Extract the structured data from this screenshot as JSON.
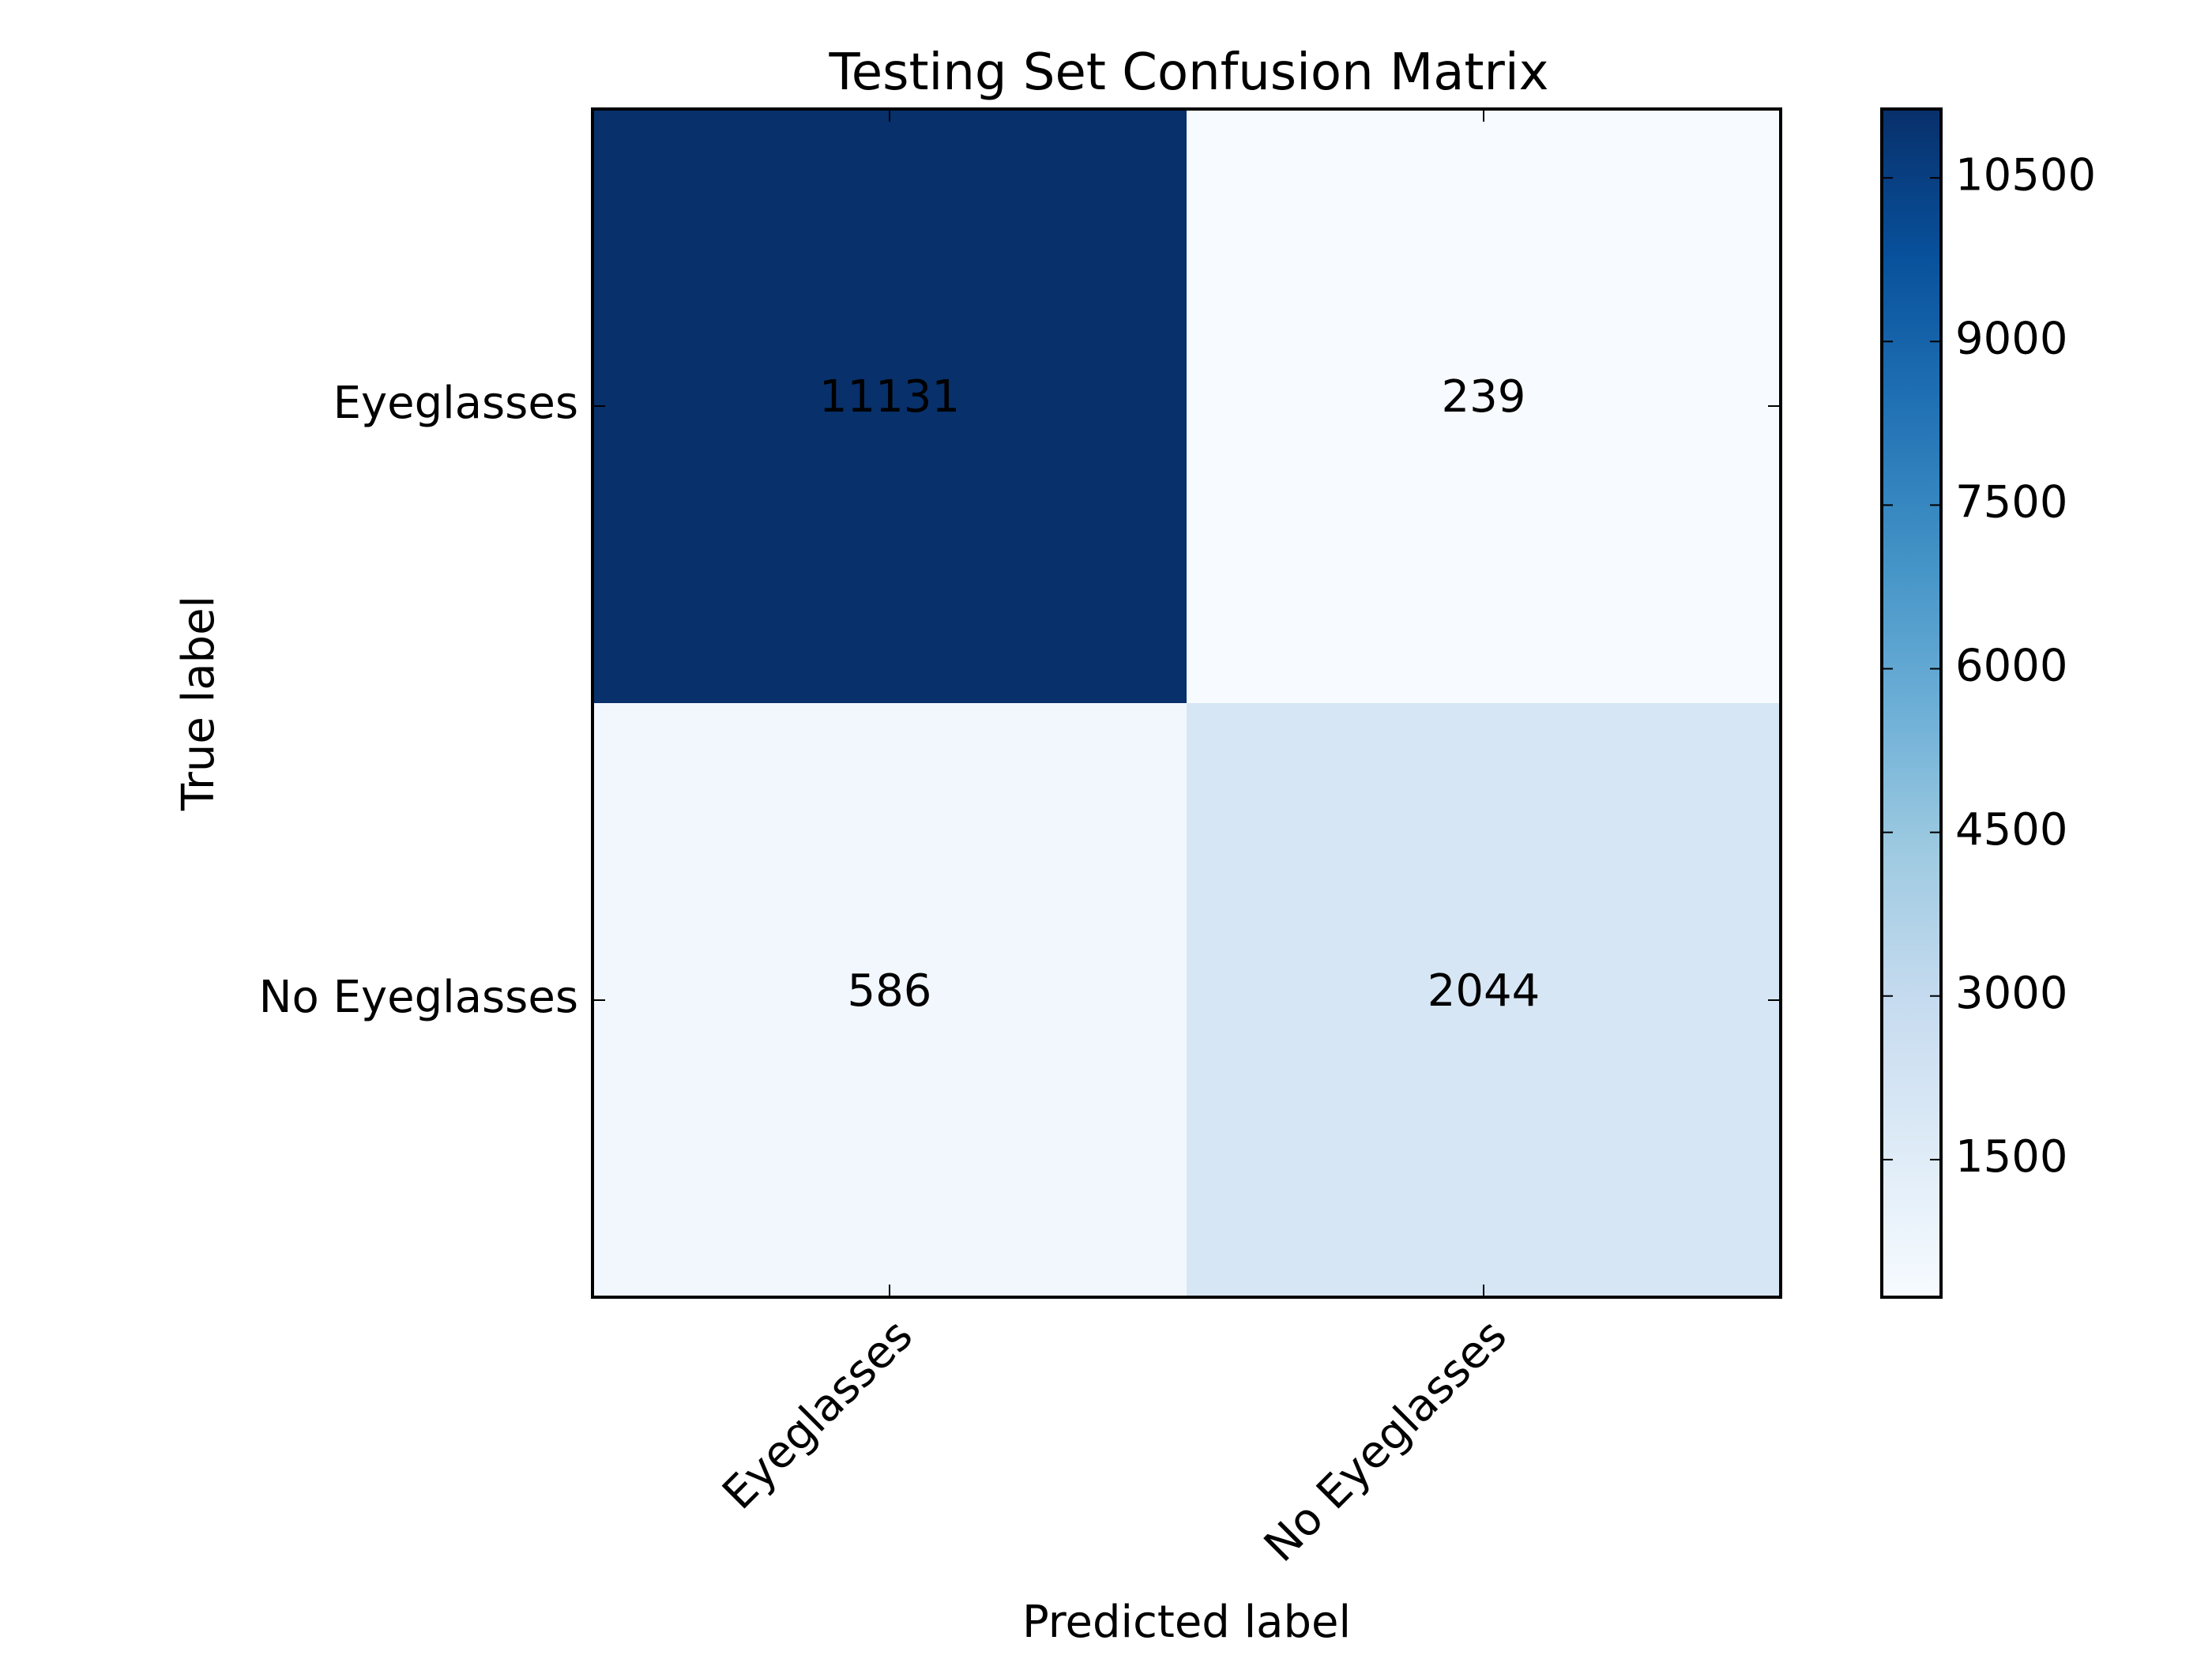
{
  "chart_data": {
    "type": "heatmap",
    "title": "Testing Set Confusion Matrix",
    "xlabel": "Predicted label",
    "ylabel": "True label",
    "x_categories": [
      "Eyeglasses",
      "No Eyeglasses"
    ],
    "y_categories": [
      "Eyeglasses",
      "No Eyeglasses"
    ],
    "values": [
      [
        11131,
        239
      ],
      [
        586,
        2044
      ]
    ],
    "colormap": "Blues",
    "colorbar": {
      "range": [
        239,
        11131
      ],
      "ticks": [
        "1500",
        "3000",
        "4500",
        "6000",
        "7500",
        "9000",
        "10500"
      ]
    },
    "colors": {
      "dark": "#08306b",
      "light": "#f7fbff"
    }
  }
}
